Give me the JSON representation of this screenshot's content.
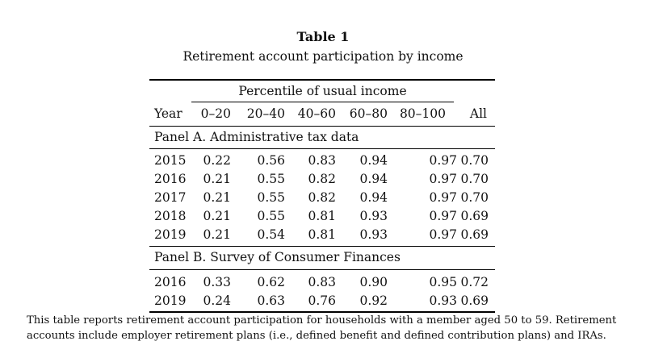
{
  "title": "Table 1",
  "subtitle": "Retirement account participation by income",
  "group_header": "Percentile of usual income",
  "columns": [
    "Year",
    "0–20",
    "20–40",
    "40–60",
    "60–80",
    "80–100",
    "All"
  ],
  "panels": [
    {
      "title": "Panel A. Administrative tax data",
      "rows": [
        [
          "2015",
          "0.22",
          "0.56",
          "0.83",
          "0.94",
          "0.97",
          "0.70"
        ],
        [
          "2016",
          "0.21",
          "0.55",
          "0.82",
          "0.94",
          "0.97",
          "0.70"
        ],
        [
          "2017",
          "0.21",
          "0.55",
          "0.82",
          "0.94",
          "0.97",
          "0.70"
        ],
        [
          "2018",
          "0.21",
          "0.55",
          "0.81",
          "0.93",
          "0.97",
          "0.69"
        ],
        [
          "2019",
          "0.21",
          "0.54",
          "0.81",
          "0.93",
          "0.97",
          "0.69"
        ]
      ]
    },
    {
      "title": "Panel B. Survey of Consumer Finances",
      "rows": [
        [
          "2016",
          "0.33",
          "0.62",
          "0.83",
          "0.90",
          "0.95",
          "0.72"
        ],
        [
          "2019",
          "0.24",
          "0.63",
          "0.76",
          "0.92",
          "0.93",
          "0.69"
        ]
      ]
    }
  ],
  "note": "This table reports retirement account participation for households with a member aged 50 to 59. Retirement accounts include employer retirement plans (i.e., defined benefit and defined contribution plans) and IRAs."
}
